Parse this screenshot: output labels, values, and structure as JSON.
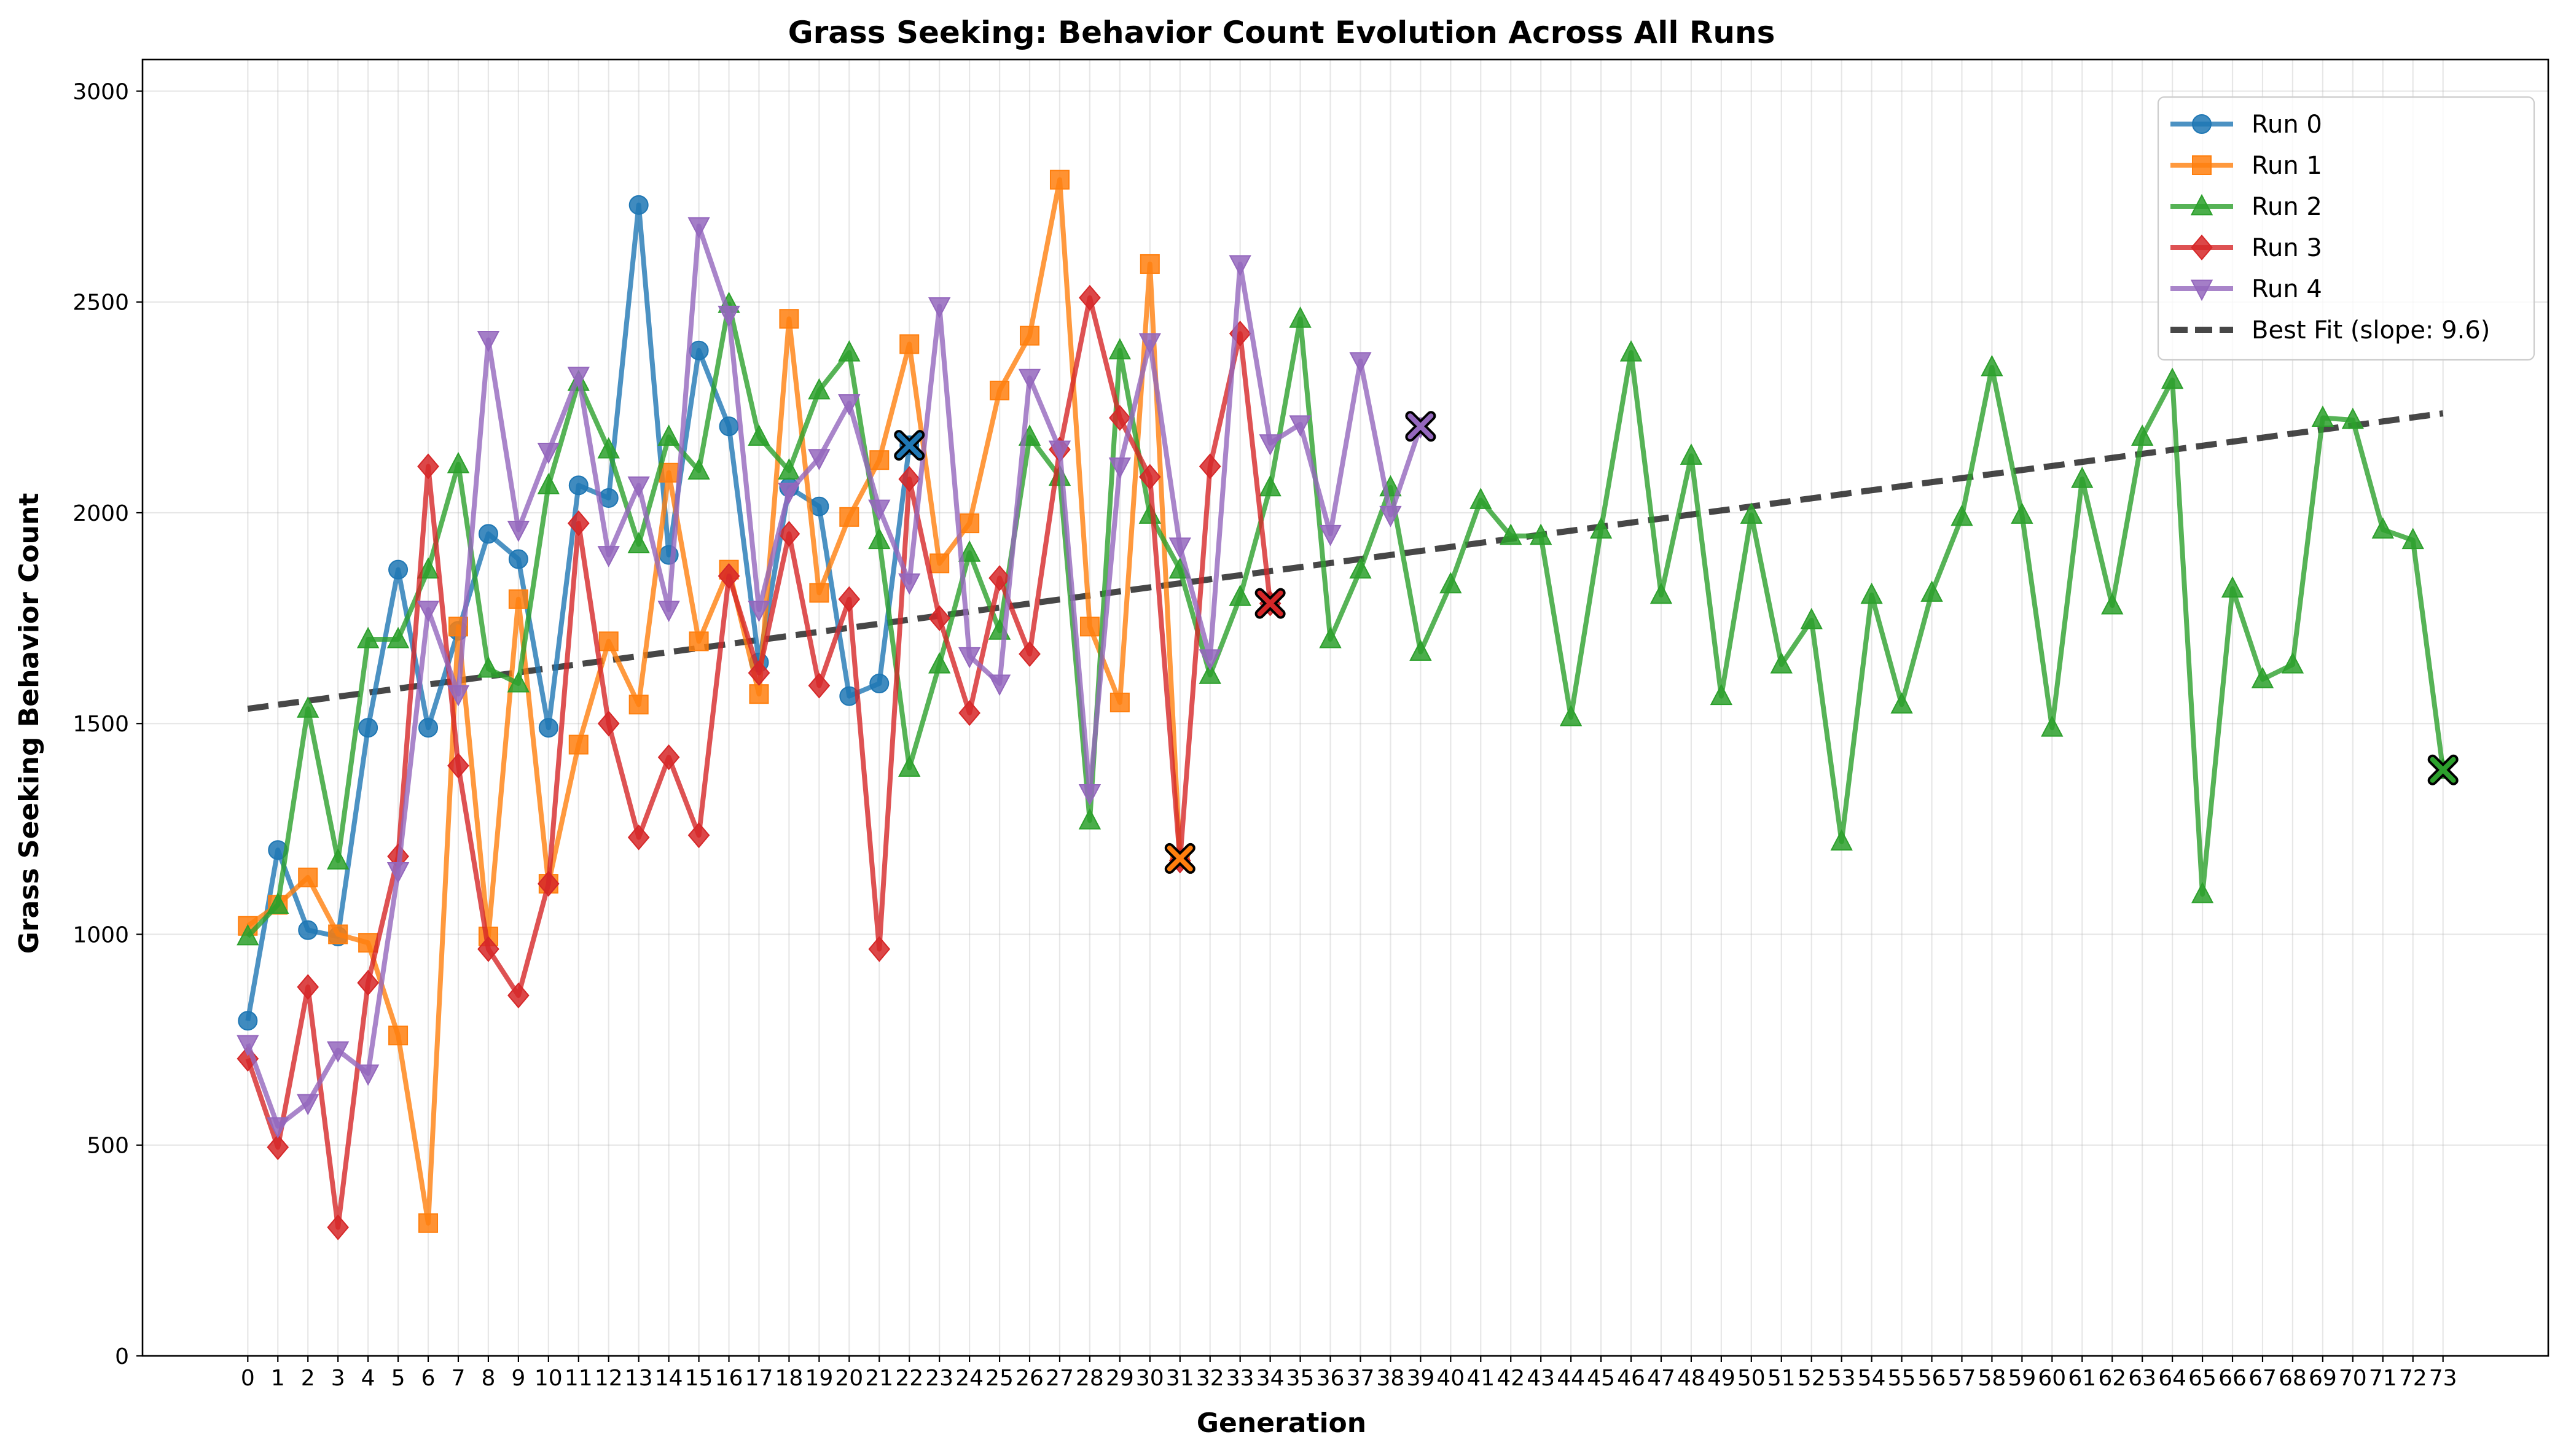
{
  "chart_data": {
    "type": "line",
    "title": "Grass Seeking: Behavior Count Evolution Across All Runs",
    "xlabel": "Generation",
    "ylabel": "Grass Seeking Behavior Count",
    "xlim": [
      -3.5,
      76.5
    ],
    "ylim": [
      0,
      3075
    ],
    "xticks": [
      0,
      1,
      2,
      3,
      4,
      5,
      6,
      7,
      8,
      9,
      10,
      11,
      12,
      13,
      14,
      15,
      16,
      17,
      18,
      19,
      20,
      21,
      22,
      23,
      24,
      25,
      26,
      27,
      28,
      29,
      30,
      31,
      32,
      33,
      34,
      35,
      36,
      37,
      38,
      39,
      40,
      41,
      42,
      43,
      44,
      45,
      46,
      47,
      48,
      49,
      50,
      51,
      52,
      53,
      54,
      55,
      56,
      57,
      58,
      59,
      60,
      61,
      62,
      63,
      64,
      65,
      66,
      67,
      68,
      69,
      70,
      71,
      72,
      73
    ],
    "yticks": [
      0,
      500,
      1000,
      1500,
      2000,
      2500,
      3000
    ],
    "grid": true,
    "legend_position": "top-right",
    "series": [
      {
        "name": "Run 0",
        "color": "#1f77b4",
        "marker": "circle",
        "values": [
          795,
          1200,
          1010,
          995,
          1490,
          1865,
          1490,
          1720,
          1950,
          1890,
          1490,
          2065,
          2035,
          2730,
          1900,
          2385,
          2205,
          1645,
          2060,
          2015,
          1565,
          1595,
          2160
        ]
      },
      {
        "name": "Run 1",
        "color": "#ff7f0e",
        "marker": "square",
        "values": [
          1020,
          1070,
          1135,
          1000,
          980,
          760,
          315,
          1730,
          995,
          1795,
          1120,
          1450,
          1695,
          1545,
          2095,
          1695,
          1865,
          1570,
          2460,
          1810,
          1990,
          2125,
          2400,
          1880,
          1975,
          2290,
          2420,
          2790,
          1730,
          1550,
          2590,
          1180
        ]
      },
      {
        "name": "Run 2",
        "color": "#2ca02c",
        "marker": "triangle-up",
        "values": [
          995,
          1070,
          1535,
          1175,
          1700,
          1700,
          1865,
          2115,
          1630,
          1595,
          2065,
          2310,
          2150,
          1925,
          2180,
          2100,
          2495,
          2180,
          2100,
          2290,
          2380,
          1935,
          1395,
          1640,
          1905,
          1720,
          2180,
          2085,
          1270,
          2385,
          1995,
          1865,
          1615,
          1800,
          2060,
          2460,
          1700,
          1865,
          2060,
          1670,
          1830,
          2030,
          1945,
          1945,
          1515,
          1960,
          2380,
          1805,
          2135,
          1565,
          1995,
          1640,
          1745,
          1220,
          1805,
          1545,
          1810,
          1990,
          2345,
          1995,
          1490,
          2080,
          1780,
          2180,
          2315,
          1095,
          1820,
          1605,
          1640,
          2225,
          2220,
          1960,
          1935,
          1390
        ]
      },
      {
        "name": "Run 3",
        "color": "#d62728",
        "marker": "diamond",
        "values": [
          705,
          495,
          875,
          305,
          885,
          1185,
          2110,
          1400,
          965,
          855,
          1120,
          1975,
          1500,
          1230,
          1420,
          1235,
          1850,
          1620,
          1950,
          1590,
          1795,
          965,
          2080,
          1750,
          1525,
          1845,
          1665,
          2150,
          2510,
          2225,
          2085,
          1175,
          2110,
          2425,
          1785
        ]
      },
      {
        "name": "Run 4",
        "color": "#9467bd",
        "marker": "triangle-down",
        "values": [
          740,
          545,
          600,
          725,
          670,
          1150,
          1770,
          1570,
          2410,
          1960,
          2145,
          2325,
          1900,
          2065,
          1770,
          2680,
          2470,
          1770,
          2050,
          2130,
          2260,
          2010,
          1835,
          2490,
          1660,
          1595,
          2320,
          2150,
          1335,
          2110,
          2405,
          1920,
          1655,
          2590,
          2165,
          2210,
          1950,
          2360,
          1995,
          2205
        ]
      }
    ],
    "best_fit": {
      "name": "Best Fit (slope: 9.6)",
      "color": "#000000",
      "slope": 9.6,
      "intercept": 1535,
      "x_range": [
        0,
        73
      ]
    }
  }
}
